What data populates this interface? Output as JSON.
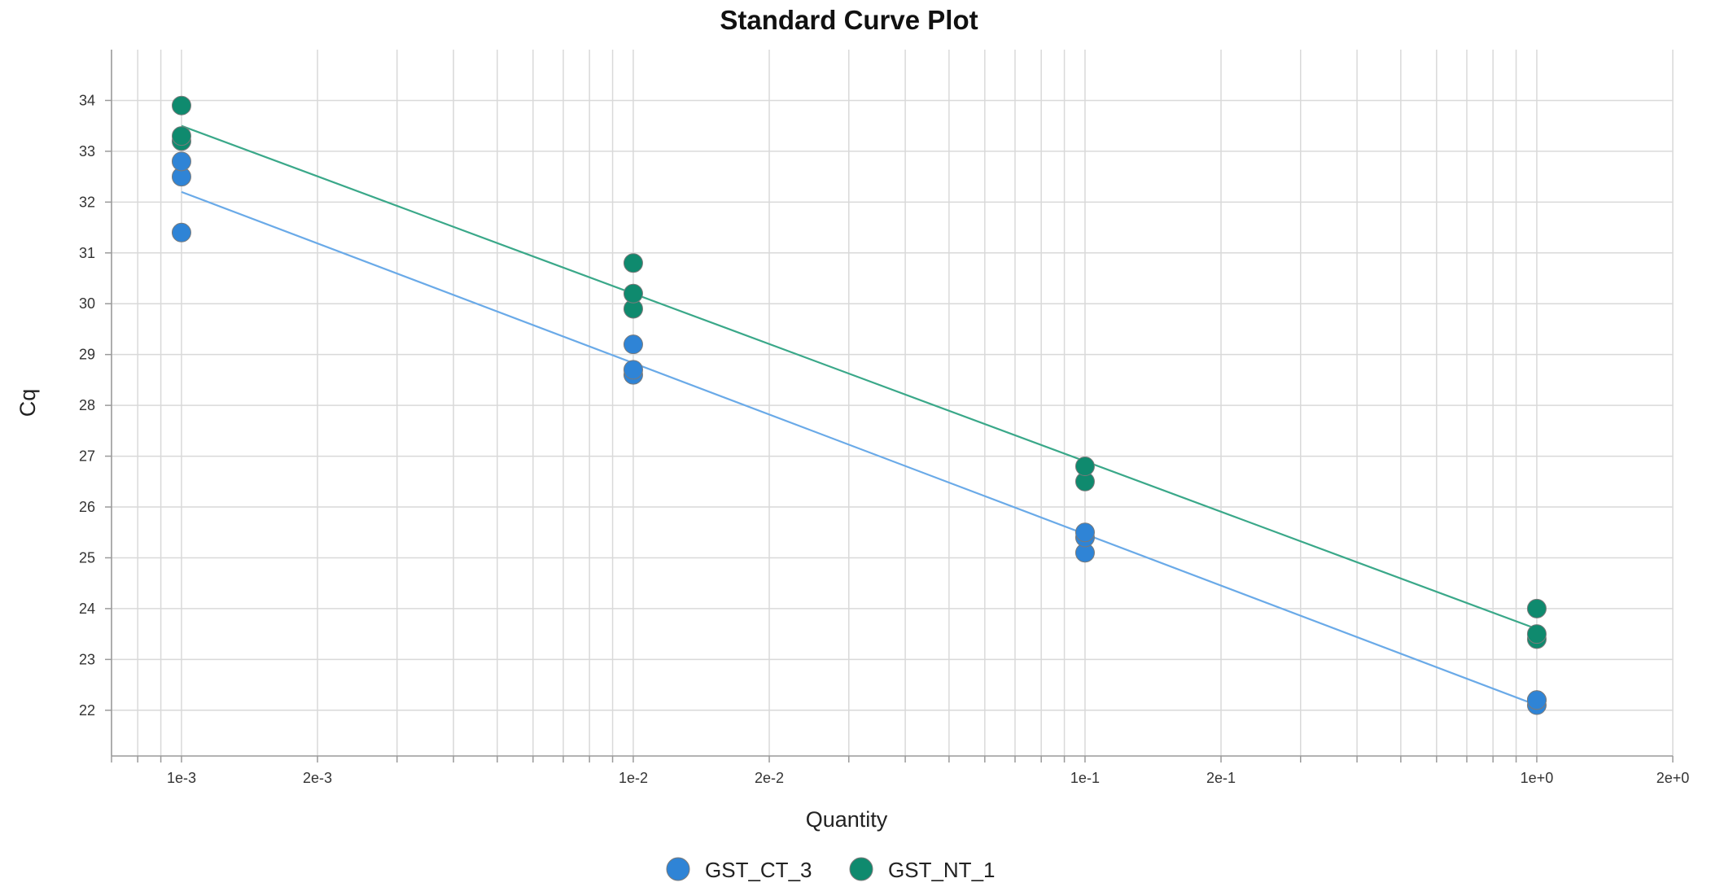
{
  "chart_data": {
    "type": "scatter",
    "title": "Standard Curve Plot",
    "xlabel": "Quantity",
    "ylabel": "Cq",
    "xscale": "log",
    "xlim": [
      0.0007,
      2.0
    ],
    "ylim": [
      21.1,
      35
    ],
    "grid": true,
    "legend_position": "bottom-center",
    "x_ticks": [
      {
        "value": 0.001,
        "label": "1e-3"
      },
      {
        "value": 0.002,
        "label": "2e-3"
      },
      {
        "value": 0.01,
        "label": "1e-2"
      },
      {
        "value": 0.02,
        "label": "2e-2"
      },
      {
        "value": 0.1,
        "label": "1e-1"
      },
      {
        "value": 0.2,
        "label": "2e-1"
      },
      {
        "value": 1,
        "label": "1e+0"
      },
      {
        "value": 2,
        "label": "2e+0"
      }
    ],
    "y_ticks": [
      {
        "value": 22,
        "label": "22"
      },
      {
        "value": 23,
        "label": "23"
      },
      {
        "value": 24,
        "label": "24"
      },
      {
        "value": 25,
        "label": "25"
      },
      {
        "value": 26,
        "label": "26"
      },
      {
        "value": 27,
        "label": "27"
      },
      {
        "value": 28,
        "label": "28"
      },
      {
        "value": 29,
        "label": "29"
      },
      {
        "value": 30,
        "label": "30"
      },
      {
        "value": 31,
        "label": "31"
      },
      {
        "value": 32,
        "label": "32"
      },
      {
        "value": 33,
        "label": "33"
      },
      {
        "value": 34,
        "label": "34"
      }
    ],
    "series": [
      {
        "name": "GST_CT_3",
        "color": "#2f84d6",
        "line_color": "#6aaae8",
        "points": [
          {
            "x": 0.001,
            "y": 31.4
          },
          {
            "x": 0.001,
            "y": 32.5
          },
          {
            "x": 0.001,
            "y": 32.8
          },
          {
            "x": 0.01,
            "y": 28.6
          },
          {
            "x": 0.01,
            "y": 28.7
          },
          {
            "x": 0.01,
            "y": 29.2
          },
          {
            "x": 0.1,
            "y": 25.1
          },
          {
            "x": 0.1,
            "y": 25.4
          },
          {
            "x": 0.1,
            "y": 25.5
          },
          {
            "x": 1,
            "y": 22.1
          },
          {
            "x": 1,
            "y": 22.2
          },
          {
            "x": 1,
            "y": 22.2
          }
        ],
        "fit": {
          "x": [
            0.001,
            1
          ],
          "y": [
            32.2,
            22.1
          ]
        }
      },
      {
        "name": "GST_NT_1",
        "color": "#0f8a6e",
        "line_color": "#3aa889",
        "points": [
          {
            "x": 0.001,
            "y": 33.2
          },
          {
            "x": 0.001,
            "y": 33.3
          },
          {
            "x": 0.001,
            "y": 33.9
          },
          {
            "x": 0.01,
            "y": 29.9
          },
          {
            "x": 0.01,
            "y": 30.2
          },
          {
            "x": 0.01,
            "y": 30.8
          },
          {
            "x": 0.1,
            "y": 26.5
          },
          {
            "x": 0.1,
            "y": 26.8
          },
          {
            "x": 1,
            "y": 23.4
          },
          {
            "x": 1,
            "y": 23.5
          },
          {
            "x": 1,
            "y": 24.0
          }
        ],
        "fit": {
          "x": [
            0.001,
            1
          ],
          "y": [
            33.5,
            23.6
          ]
        }
      }
    ]
  }
}
